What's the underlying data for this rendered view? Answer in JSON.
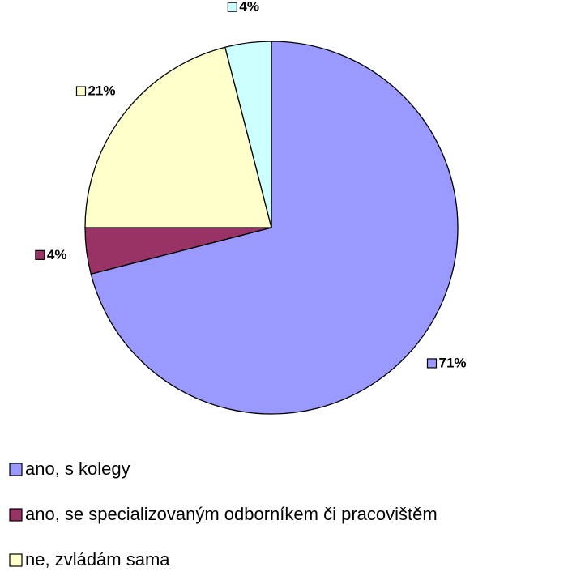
{
  "chart_data": {
    "type": "pie",
    "categories": [
      "ano, s kolegy",
      "ano, se specializovaným odborníkem či pracovištěm",
      "ne, zvládám sama",
      null
    ],
    "values": [
      71,
      4,
      21,
      4
    ],
    "value_labels": [
      "71%",
      "4%",
      "21%",
      "4%"
    ],
    "colors": [
      "#9999ff",
      "#993366",
      "#ffffcc",
      "#ccffff"
    ],
    "legend": "bottom"
  }
}
